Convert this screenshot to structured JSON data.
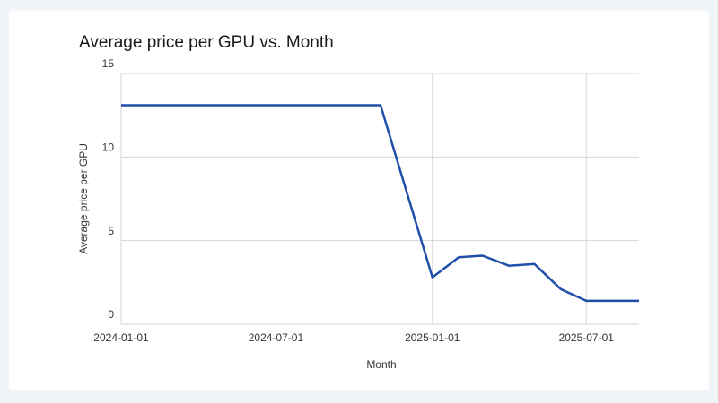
{
  "chart_data": {
    "type": "line",
    "title": "Average price per GPU vs. Month",
    "x_label": "Month",
    "y_label": "Average price per GPU",
    "x": [
      "2024-01-01",
      "2024-02-01",
      "2024-03-01",
      "2024-04-01",
      "2024-05-01",
      "2024-06-01",
      "2024-07-01",
      "2024-08-01",
      "2024-09-01",
      "2024-10-01",
      "2024-11-01",
      "2025-01-01",
      "2025-02-01",
      "2025-03-01",
      "2025-04-01",
      "2025-05-01",
      "2025-06-01",
      "2025-07-01",
      "2025-08-01",
      "2025-09-01"
    ],
    "series": [
      {
        "name": "Average price per GPU",
        "color": "#1f4fa8",
        "values": [
          13.1,
          13.1,
          13.1,
          13.1,
          13.1,
          13.1,
          13.1,
          13.1,
          13.1,
          13.1,
          13.1,
          2.8,
          4.0,
          4.1,
          3.5,
          3.6,
          2.1,
          1.4,
          1.4,
          1.4
        ]
      }
    ],
    "xlim": [
      "2024-01-01",
      "2025-09-01"
    ],
    "xticks": [
      "2024-01-01",
      "2024-07-01",
      "2025-01-01",
      "2025-07-01"
    ],
    "ylim": [
      0,
      15
    ],
    "yticks": [
      0,
      5,
      10,
      15
    ],
    "grid": true
  }
}
